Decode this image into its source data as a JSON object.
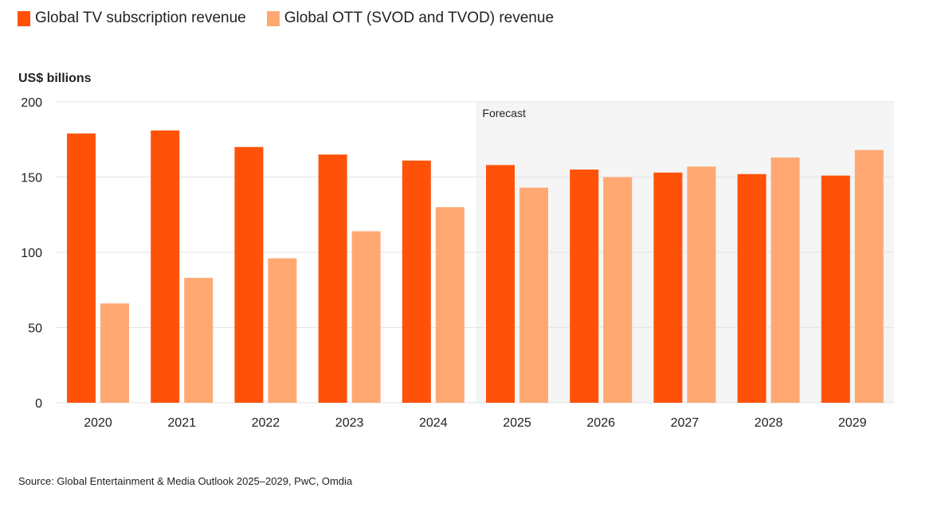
{
  "chart_data": {
    "type": "bar",
    "title": "",
    "xlabel": "",
    "ylabel": "US$ billions",
    "ylim": [
      0,
      200
    ],
    "yticks": [
      0,
      50,
      100,
      150,
      200
    ],
    "grid": true,
    "legend_position": "top-left",
    "categories": [
      "2020",
      "2021",
      "2022",
      "2023",
      "2024",
      "2025",
      "2026",
      "2027",
      "2028",
      "2029"
    ],
    "series": [
      {
        "name": "Global TV subscription revenue",
        "color": "#FF5208",
        "values": [
          179,
          181,
          170,
          165,
          161,
          158,
          155,
          153,
          152,
          151
        ]
      },
      {
        "name": "Global OTT (SVOD and TVOD) revenue",
        "color": "#FFA872",
        "values": [
          66,
          83,
          96,
          114,
          130,
          143,
          150,
          157,
          163,
          168
        ]
      }
    ],
    "annotations": [
      {
        "text": "Forecast",
        "applies_to": [
          "2025",
          "2026",
          "2027",
          "2028",
          "2029"
        ],
        "background": "#F5F5F5"
      }
    ],
    "source": "Source: Global Entertainment & Media Outlook 2025–2029, PwC, Omdia"
  }
}
